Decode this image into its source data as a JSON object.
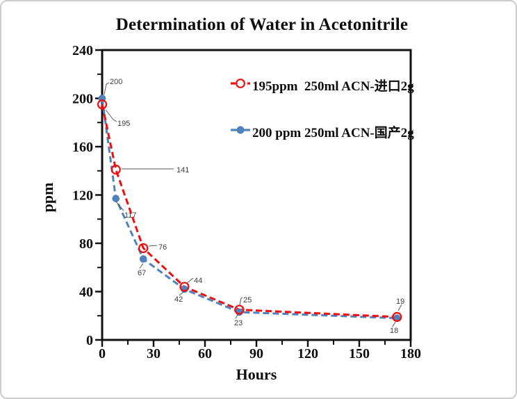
{
  "card": {
    "background": "#ffffff",
    "border_color": "#cdcdcd"
  },
  "chart_data": {
    "type": "line",
    "title": "Determination of Water in Acetonitrile",
    "xlabel": "Hours",
    "ylabel": "ppm",
    "xlim": [
      0,
      180
    ],
    "ylim": [
      0,
      240
    ],
    "x_major_ticks": [
      0,
      30,
      60,
      90,
      120,
      150,
      180
    ],
    "x_minor_step": 15,
    "y_major_ticks": [
      0,
      40,
      80,
      120,
      160,
      200,
      240
    ],
    "y_minor_step": 20,
    "grid": false,
    "legend_position": "inside-top-right",
    "data_labels": true,
    "axis_color": "#111111",
    "data_label_color": "#3d3d3d",
    "leader_line_color": "#595959",
    "x": [
      0,
      8,
      24,
      48,
      80,
      172
    ],
    "series": [
      {
        "name": "195ppm  250ml ACN-进口2g",
        "color": "#f20d0d",
        "marker": "open-circle",
        "line_style": "dashed",
        "values": [
          195,
          141,
          76,
          44,
          25,
          19
        ]
      },
      {
        "name": "200 ppm 250ml ACN-国产2g",
        "color": "#4f81bd",
        "marker": "filled-circle",
        "line_style": "dashed",
        "values": [
          200,
          117,
          67,
          42,
          23,
          18
        ]
      }
    ]
  }
}
